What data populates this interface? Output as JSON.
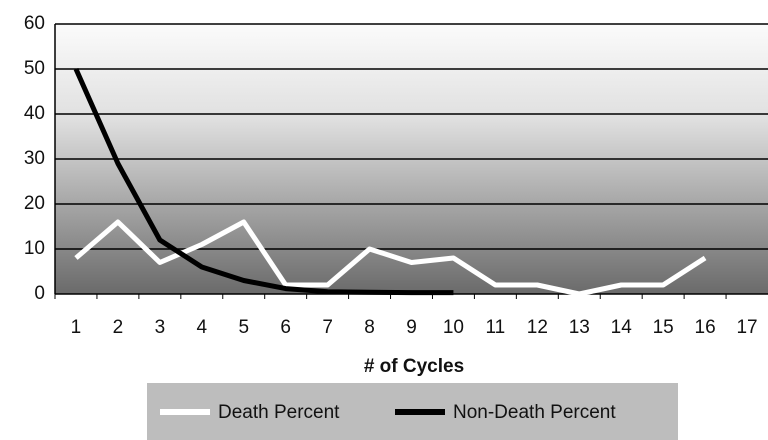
{
  "chart_data": {
    "type": "line",
    "x_label": "# of Cycles",
    "categories": [
      "1",
      "2",
      "3",
      "4",
      "5",
      "6",
      "7",
      "8",
      "9",
      "10",
      "11",
      "12",
      "13",
      "14",
      "15",
      "16",
      "17"
    ],
    "series": [
      {
        "name": "Death Percent",
        "color": "#ffffff",
        "values": [
          8,
          16,
          7,
          11,
          16,
          2,
          2,
          10,
          7,
          8,
          2,
          2,
          0,
          2,
          2,
          8,
          null
        ]
      },
      {
        "name": "Non-Death Percent",
        "color": "#000000",
        "values": [
          50,
          29,
          12,
          6,
          3,
          1.2,
          0.5,
          0.4,
          0.3,
          0.3,
          null,
          null,
          null,
          null,
          null,
          null,
          null
        ]
      }
    ],
    "ylim": [
      0,
      60
    ],
    "yticks": [
      0,
      10,
      20,
      30,
      40,
      50,
      60
    ],
    "grid": true,
    "legend": "bottom"
  }
}
